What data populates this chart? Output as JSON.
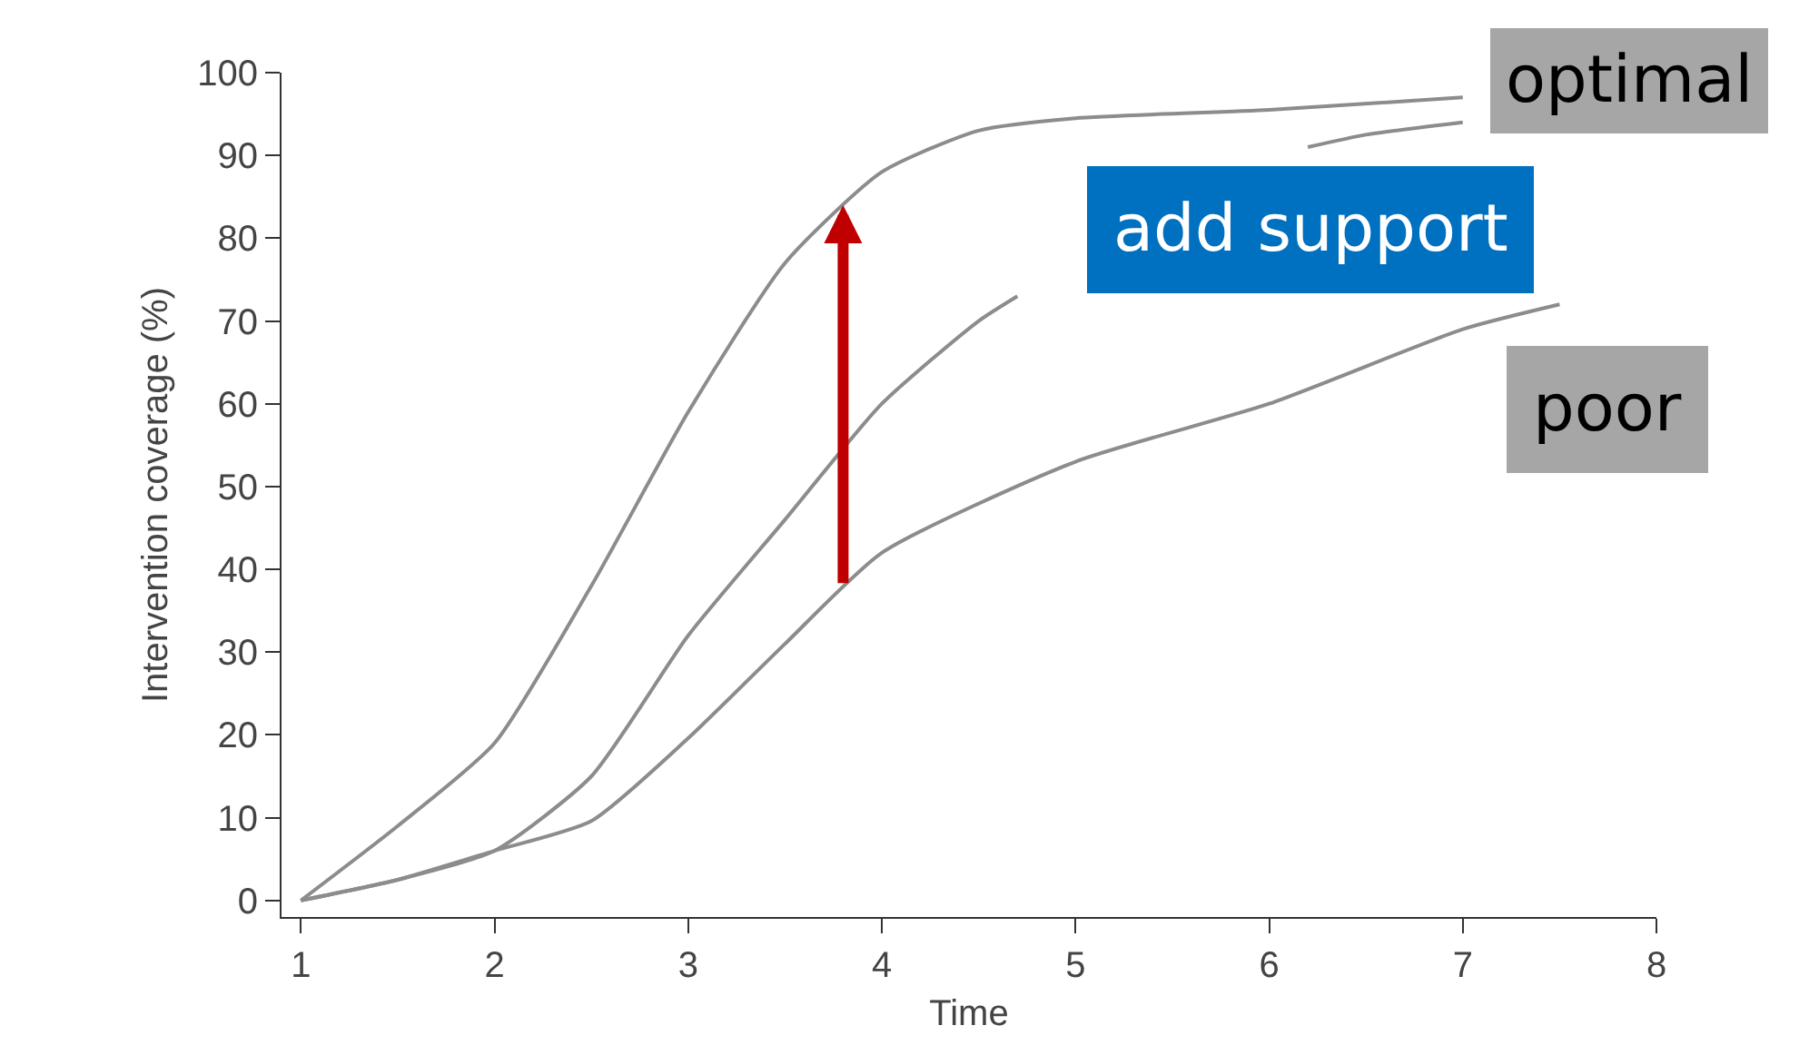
{
  "chart_data": {
    "type": "line",
    "xlabel": "Time",
    "ylabel": "Intervention coverage (%)",
    "xlim": [
      0.9,
      8
    ],
    "xticks": [
      1,
      2,
      3,
      4,
      5,
      6,
      7,
      8
    ],
    "ylim": [
      -2,
      100
    ],
    "yticks": [
      0,
      10,
      20,
      30,
      40,
      50,
      60,
      70,
      80,
      90,
      100
    ],
    "grid": false,
    "marker": "none",
    "line_style": "solid",
    "series": [
      {
        "color": "#8c8c8c",
        "x": [
          1,
          1.5,
          2,
          2.5,
          3,
          3.5,
          4,
          4.5,
          5,
          6,
          7
        ],
        "values": [
          0,
          9,
          19,
          38,
          59,
          77,
          88,
          93,
          94.5,
          95.5,
          97
        ]
      },
      {
        "color": "#8c8c8c",
        "x": [
          1,
          1.5,
          2,
          2.5,
          3,
          3.5,
          4,
          4.5,
          4.7,
          5.5,
          6.2,
          6.5,
          7
        ],
        "values": [
          0,
          2.5,
          6,
          15,
          32,
          46,
          60,
          70,
          73,
          null,
          91,
          92.5,
          94
        ]
      },
      {
        "color": "#8c8c8c",
        "x": [
          1,
          1.5,
          2,
          2.5,
          3,
          3.5,
          4,
          5,
          6,
          7,
          7.5
        ],
        "values": [
          0,
          2.5,
          6,
          9.6,
          19.6,
          31,
          42,
          53,
          60,
          69,
          72
        ]
      }
    ],
    "annotations": [
      "optimal",
      "add support",
      "poor"
    ]
  }
}
